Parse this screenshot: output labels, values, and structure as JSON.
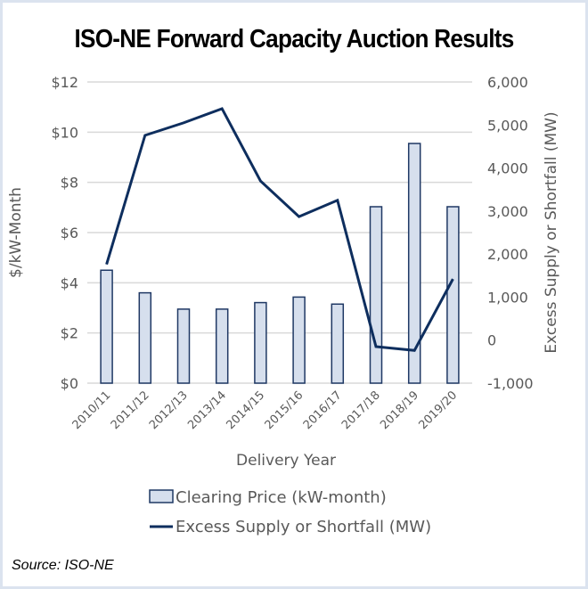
{
  "chart_data": {
    "type": "bar",
    "title": "ISO-NE Forward Capacity Auction Results",
    "xlabel": "Delivery Year",
    "ylabel": "$/kW-Month",
    "y2label": "Excess Supply or Shortfall (MW)",
    "categories": [
      "2010/11",
      "2011/12",
      "2012/13",
      "2013/14",
      "2014/15",
      "2015/16",
      "2016/17",
      "2017/18",
      "2018/19",
      "2019/20"
    ],
    "ylim": [
      0,
      12
    ],
    "y_ticks": [
      0,
      2,
      4,
      6,
      8,
      10,
      12
    ],
    "y_tick_labels": [
      "$0",
      "$2",
      "$4",
      "$6",
      "$8",
      "$10",
      "$12"
    ],
    "y2lim": [
      -1000,
      6000
    ],
    "y2_ticks": [
      -1000,
      0,
      1000,
      2000,
      3000,
      4000,
      5000,
      6000
    ],
    "y2_tick_labels": [
      "-1,000",
      "0",
      "1,000",
      "2,000",
      "3,000",
      "4,000",
      "5,000",
      "6,000"
    ],
    "grid": true,
    "legend_position": "bottom",
    "series": [
      {
        "name": "Clearing Price (kW-month)",
        "type": "bar",
        "axis": "left",
        "color": "#d6dfed",
        "edge_color": "#1f3864",
        "values": [
          4.5,
          3.6,
          2.95,
          2.95,
          3.21,
          3.43,
          3.15,
          7.03,
          9.55,
          7.03
        ]
      },
      {
        "name": "Excess Supply or Shortfall (MW)",
        "type": "line",
        "axis": "right",
        "color": "#0e2e5e",
        "values": [
          1760,
          4760,
          5050,
          5380,
          3700,
          2870,
          3250,
          -150,
          -240,
          1420
        ]
      }
    ]
  },
  "source": "Source: ISO-NE"
}
